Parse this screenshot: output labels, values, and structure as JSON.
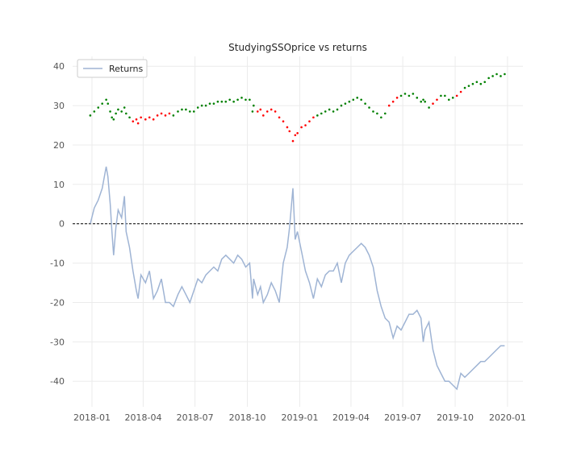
{
  "chart_data": {
    "type": "line",
    "title": "StudyingSSOprice vs returns",
    "xlabel": "",
    "ylabel": "",
    "x_ticks": [
      "2018-01",
      "2018-04",
      "2018-07",
      "2018-10",
      "2019-01",
      "2019-04",
      "2019-07",
      "2019-10",
      "2020-01"
    ],
    "y_ticks": [
      40,
      30,
      20,
      10,
      0,
      -10,
      -20,
      -30,
      -40
    ],
    "xlim": [
      "2017-11-28",
      "2020-01-28"
    ],
    "ylim": [
      -46.5,
      42.5
    ],
    "grid": true,
    "legend": {
      "position": "top-left",
      "entries": [
        "Returns"
      ]
    },
    "baseline": 0,
    "colors": {
      "returns": "#9fb4d4",
      "up": "#008000",
      "down": "#ff0000",
      "grid": "#ebebeb",
      "baseline": "#000000"
    },
    "series": [
      {
        "name": "Returns",
        "style": "line",
        "x": [
          "2017-12-29",
          "2018-01-05",
          "2018-01-12",
          "2018-01-19",
          "2018-01-26",
          "2018-01-29",
          "2018-02-02",
          "2018-02-05",
          "2018-02-08",
          "2018-02-12",
          "2018-02-16",
          "2018-02-22",
          "2018-02-27",
          "2018-03-02",
          "2018-03-08",
          "2018-03-14",
          "2018-03-20",
          "2018-03-23",
          "2018-03-28",
          "2018-04-05",
          "2018-04-12",
          "2018-04-19",
          "2018-04-26",
          "2018-05-03",
          "2018-05-10",
          "2018-05-17",
          "2018-05-24",
          "2018-06-01",
          "2018-06-08",
          "2018-06-15",
          "2018-06-22",
          "2018-06-29",
          "2018-07-06",
          "2018-07-13",
          "2018-07-20",
          "2018-07-27",
          "2018-08-03",
          "2018-08-10",
          "2018-08-17",
          "2018-08-24",
          "2018-08-31",
          "2018-09-07",
          "2018-09-14",
          "2018-09-21",
          "2018-09-28",
          "2018-10-05",
          "2018-10-10",
          "2018-10-12",
          "2018-10-19",
          "2018-10-24",
          "2018-10-29",
          "2018-11-05",
          "2018-11-12",
          "2018-11-19",
          "2018-11-26",
          "2018-12-03",
          "2018-12-10",
          "2018-12-14",
          "2018-12-20",
          "2018-12-24",
          "2018-12-28",
          "2019-01-04",
          "2019-01-11",
          "2019-01-18",
          "2019-01-25",
          "2019-02-01",
          "2019-02-08",
          "2019-02-15",
          "2019-02-22",
          "2019-03-01",
          "2019-03-08",
          "2019-03-15",
          "2019-03-22",
          "2019-03-29",
          "2019-04-05",
          "2019-04-12",
          "2019-04-19",
          "2019-04-26",
          "2019-05-03",
          "2019-05-10",
          "2019-05-17",
          "2019-05-24",
          "2019-05-31",
          "2019-06-07",
          "2019-06-14",
          "2019-06-21",
          "2019-06-28",
          "2019-07-05",
          "2019-07-12",
          "2019-07-19",
          "2019-07-26",
          "2019-08-02",
          "2019-08-06",
          "2019-08-09",
          "2019-08-16",
          "2019-08-23",
          "2019-08-30",
          "2019-09-06",
          "2019-09-13",
          "2019-09-20",
          "2019-09-27",
          "2019-10-04",
          "2019-10-11",
          "2019-10-18",
          "2019-10-25",
          "2019-11-01",
          "2019-11-08",
          "2019-11-15",
          "2019-11-22",
          "2019-11-29",
          "2019-12-06",
          "2019-12-13",
          "2019-12-20",
          "2019-12-27"
        ],
        "y": [
          0,
          4,
          6,
          9,
          14.5,
          12,
          5,
          -2,
          -8,
          -1,
          3.5,
          1.5,
          7,
          -2,
          -6,
          -12,
          -17,
          -19,
          -13,
          -15,
          -12,
          -19,
          -17,
          -14,
          -20,
          -20,
          -21,
          -18,
          -16,
          -18,
          -20,
          -17,
          -14,
          -15,
          -13,
          -12,
          -11,
          -12,
          -9,
          -8,
          -9,
          -10,
          -8,
          -9,
          -11,
          -10,
          -19,
          -14,
          -18,
          -16,
          -20,
          -18,
          -15,
          -17,
          -20,
          -10,
          -6,
          -1,
          9,
          -4,
          -2,
          -7,
          -12,
          -15,
          -19,
          -14,
          -16,
          -13,
          -12,
          -12,
          -10,
          -15,
          -10,
          -8,
          -7,
          -6,
          -5,
          -6,
          -8,
          -11,
          -17,
          -21,
          -24,
          -25,
          -29,
          -26,
          -27,
          -25,
          -23,
          -23,
          -22,
          -24,
          -30,
          -27,
          -25,
          -32,
          -36,
          -38,
          -40,
          -40,
          -41,
          -42,
          -38,
          -39,
          -38,
          -37,
          -36,
          -35,
          -35,
          -34,
          -33,
          -32,
          -31,
          -31
        ]
      },
      {
        "name": "",
        "style": "points",
        "x": [
          "2017-12-29",
          "2018-01-05",
          "2018-01-12",
          "2018-01-19",
          "2018-01-26",
          "2018-01-29",
          "2018-02-02",
          "2018-02-05",
          "2018-02-08",
          "2018-02-12",
          "2018-02-16",
          "2018-02-22",
          "2018-02-27",
          "2018-03-02",
          "2018-03-08",
          "2018-03-14",
          "2018-03-20",
          "2018-03-23",
          "2018-03-28",
          "2018-04-05",
          "2018-04-12",
          "2018-04-19",
          "2018-04-26",
          "2018-05-03",
          "2018-05-10",
          "2018-05-17",
          "2018-05-24",
          "2018-06-01",
          "2018-06-08",
          "2018-06-15",
          "2018-06-22",
          "2018-06-29",
          "2018-07-06",
          "2018-07-13",
          "2018-07-20",
          "2018-07-27",
          "2018-08-03",
          "2018-08-10",
          "2018-08-17",
          "2018-08-24",
          "2018-08-31",
          "2018-09-07",
          "2018-09-14",
          "2018-09-21",
          "2018-09-28",
          "2018-10-05",
          "2018-10-10",
          "2018-10-12",
          "2018-10-19",
          "2018-10-24",
          "2018-10-29",
          "2018-11-05",
          "2018-11-12",
          "2018-11-19",
          "2018-11-26",
          "2018-12-03",
          "2018-12-10",
          "2018-12-14",
          "2018-12-20",
          "2018-12-24",
          "2018-12-28",
          "2019-01-04",
          "2019-01-11",
          "2019-01-18",
          "2019-01-25",
          "2019-02-01",
          "2019-02-08",
          "2019-02-15",
          "2019-02-22",
          "2019-03-01",
          "2019-03-08",
          "2019-03-15",
          "2019-03-22",
          "2019-03-29",
          "2019-04-05",
          "2019-04-12",
          "2019-04-19",
          "2019-04-26",
          "2019-05-03",
          "2019-05-10",
          "2019-05-17",
          "2019-05-24",
          "2019-05-31",
          "2019-06-07",
          "2019-06-14",
          "2019-06-21",
          "2019-06-28",
          "2019-07-05",
          "2019-07-12",
          "2019-07-19",
          "2019-07-26",
          "2019-08-02",
          "2019-08-06",
          "2019-08-09",
          "2019-08-16",
          "2019-08-23",
          "2019-08-30",
          "2019-09-06",
          "2019-09-13",
          "2019-09-20",
          "2019-09-27",
          "2019-10-04",
          "2019-10-11",
          "2019-10-18",
          "2019-10-25",
          "2019-11-01",
          "2019-11-08",
          "2019-11-15",
          "2019-11-22",
          "2019-11-29",
          "2019-12-06",
          "2019-12-13",
          "2019-12-20",
          "2019-12-27"
        ],
        "y": [
          27.5,
          28.5,
          29.5,
          30.5,
          31.5,
          30.5,
          28.5,
          27,
          26.5,
          28,
          29,
          28.5,
          29.5,
          28,
          27,
          26,
          26.5,
          25.5,
          27,
          26.5,
          27,
          26.5,
          27.5,
          28,
          27.5,
          28,
          27.5,
          28.5,
          29,
          29,
          28.5,
          28.5,
          29.5,
          30,
          30,
          30.5,
          30.5,
          31,
          31,
          31,
          31.5,
          31,
          31.5,
          32,
          31.5,
          31.5,
          28.5,
          30,
          28.5,
          29,
          27.5,
          28.5,
          29,
          28.5,
          27,
          26,
          24.5,
          23.5,
          21,
          22.5,
          23,
          24.5,
          25,
          26,
          27,
          27.5,
          28,
          28.5,
          29,
          28.5,
          29,
          30,
          30.5,
          31,
          31.5,
          32,
          31.5,
          30.5,
          29.5,
          28.5,
          28,
          27,
          28,
          30,
          31,
          32,
          32.5,
          33,
          32.5,
          33,
          32,
          31,
          31.5,
          31,
          29.5,
          30.5,
          31.5,
          32.5,
          32.5,
          31.5,
          32,
          32.5,
          33.5,
          34.5,
          35,
          35.5,
          36,
          35.5,
          36,
          37,
          37.5,
          38,
          37.5,
          38
        ],
        "colors": [
          "up",
          "up",
          "up",
          "up",
          "up",
          "up",
          "up",
          "up",
          "up",
          "up",
          "up",
          "up",
          "up",
          "up",
          "up",
          "down",
          "down",
          "down",
          "down",
          "down",
          "down",
          "down",
          "down",
          "down",
          "down",
          "down",
          "up",
          "up",
          "up",
          "up",
          "up",
          "up",
          "up",
          "up",
          "up",
          "up",
          "up",
          "up",
          "up",
          "up",
          "up",
          "up",
          "up",
          "up",
          "up",
          "up",
          "up",
          "up",
          "down",
          "down",
          "down",
          "down",
          "down",
          "down",
          "down",
          "down",
          "down",
          "down",
          "down",
          "down",
          "down",
          "down",
          "down",
          "down",
          "down",
          "up",
          "up",
          "up",
          "up",
          "up",
          "up",
          "up",
          "up",
          "up",
          "up",
          "up",
          "up",
          "up",
          "up",
          "up",
          "up",
          "up",
          "up",
          "down",
          "down",
          "down",
          "up",
          "up",
          "up",
          "up",
          "up",
          "up",
          "up",
          "up",
          "up",
          "down",
          "down",
          "up",
          "up",
          "up",
          "up",
          "down",
          "down",
          "up",
          "up",
          "up",
          "up",
          "up",
          "up",
          "up",
          "up",
          "up",
          "up",
          "up"
        ]
      }
    ]
  }
}
